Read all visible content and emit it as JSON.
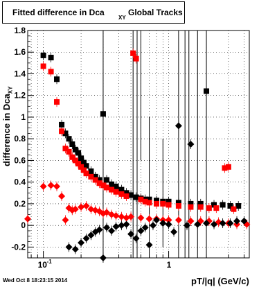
{
  "title_main": "Fitted difference in Dca",
  "title_sub": "XY",
  "title_tail": "Global Tracks",
  "footer_timestamp": "Wed Oct  8 18:23:15 2014",
  "chart_data": {
    "type": "scatter",
    "title": "Fitted difference in Dca XY Global Tracks",
    "xlabel": "pT/|q| (GeV/c)",
    "ylabel": "difference in Dca XY",
    "x_scale": "log",
    "xlim": [
      0.075,
      4.4
    ],
    "ylim": [
      -0.3,
      1.8
    ],
    "y_ticks": [
      "-0.2",
      "0",
      "0.2",
      "0.4",
      "0.6",
      "0.8",
      "1",
      "1.2",
      "1.4",
      "1.6",
      "1.8"
    ],
    "x_tick_labels": [
      "10^-1",
      "1"
    ],
    "grid": true,
    "colors": {
      "black_series": "#000000",
      "red_series": "#ff0000",
      "error_bars": "#000000"
    },
    "series": [
      {
        "marker": "square",
        "color": "#000000",
        "points": [
          [
            0.1,
            1.57
          ],
          [
            0.115,
            1.55
          ],
          [
            0.128,
            1.35
          ],
          [
            0.14,
            0.93
          ],
          [
            0.15,
            0.85
          ],
          [
            0.16,
            0.8
          ],
          [
            0.17,
            0.75
          ],
          [
            0.18,
            0.7
          ],
          [
            0.19,
            0.67
          ],
          [
            0.2,
            0.62
          ],
          [
            0.21,
            0.58
          ],
          [
            0.22,
            0.55
          ],
          [
            0.24,
            0.5
          ],
          [
            0.26,
            0.45
          ],
          [
            0.28,
            0.42
          ],
          [
            0.3,
            1.03
          ],
          [
            0.32,
            0.42
          ],
          [
            0.35,
            0.38
          ],
          [
            0.38,
            0.36
          ],
          [
            0.42,
            0.33
          ],
          [
            0.46,
            0.3
          ],
          [
            0.5,
            0.28
          ],
          [
            0.55,
            0.26
          ],
          [
            0.6,
            0.25
          ],
          [
            0.65,
            0.24
          ],
          [
            0.7,
            0.24
          ],
          [
            0.8,
            0.23
          ],
          [
            0.9,
            0.22
          ],
          [
            1.0,
            0.22
          ],
          [
            1.2,
            0.21
          ],
          [
            1.5,
            0.2
          ],
          [
            1.8,
            0.2
          ],
          [
            2.0,
            1.24
          ],
          [
            2.3,
            0.19
          ],
          [
            2.7,
            0.19
          ],
          [
            3.1,
            0.18
          ],
          [
            3.6,
            0.18
          ]
        ]
      },
      {
        "marker": "square",
        "color": "#ff0000",
        "points": [
          [
            0.1,
            1.47
          ],
          [
            0.115,
            1.42
          ],
          [
            0.128,
            1.14
          ],
          [
            0.14,
            0.87
          ],
          [
            0.15,
            0.71
          ],
          [
            0.16,
            0.68
          ],
          [
            0.17,
            0.63
          ],
          [
            0.18,
            0.6
          ],
          [
            0.19,
            0.57
          ],
          [
            0.2,
            0.54
          ],
          [
            0.21,
            0.51
          ],
          [
            0.22,
            0.48
          ],
          [
            0.24,
            0.45
          ],
          [
            0.26,
            0.42
          ],
          [
            0.28,
            0.39
          ],
          [
            0.3,
            0.37
          ],
          [
            0.32,
            0.35
          ],
          [
            0.35,
            0.33
          ],
          [
            0.38,
            0.31
          ],
          [
            0.42,
            0.29
          ],
          [
            0.46,
            0.27
          ],
          [
            0.52,
            1.59
          ],
          [
            0.55,
            1.54
          ],
          [
            0.6,
            0.24
          ],
          [
            0.65,
            0.22
          ],
          [
            0.7,
            0.21
          ],
          [
            0.8,
            0.2
          ],
          [
            0.9,
            0.2
          ],
          [
            1.0,
            0.19
          ],
          [
            1.2,
            0.18
          ],
          [
            1.5,
            0.17
          ],
          [
            1.8,
            0.17
          ],
          [
            2.1,
            0.16
          ],
          [
            2.4,
            0.16
          ],
          [
            2.8,
            0.53
          ],
          [
            3.0,
            0.54
          ],
          [
            3.3,
            0.15
          ]
        ]
      },
      {
        "marker": "diamond",
        "color": "#ff0000",
        "points": [
          [
            0.075,
            0.06
          ],
          [
            0.1,
            0.36
          ],
          [
            0.115,
            0.37
          ],
          [
            0.128,
            0.36
          ],
          [
            0.14,
            0.27
          ],
          [
            0.15,
            0.05
          ],
          [
            0.16,
            0.16
          ],
          [
            0.17,
            0.14
          ],
          [
            0.18,
            0.15
          ],
          [
            0.2,
            0.17
          ],
          [
            0.22,
            0.18
          ],
          [
            0.24,
            0.15
          ],
          [
            0.26,
            0.14
          ],
          [
            0.28,
            0.13
          ],
          [
            0.3,
            0.11
          ],
          [
            0.32,
            0.12
          ],
          [
            0.35,
            0.1
          ],
          [
            0.38,
            0.09
          ],
          [
            0.42,
            0.08
          ],
          [
            0.46,
            0.07
          ],
          [
            0.5,
            0.08
          ],
          [
            0.6,
            0.07
          ],
          [
            0.7,
            0.06
          ],
          [
            0.8,
            0.06
          ],
          [
            0.9,
            0.05
          ],
          [
            1.0,
            0.05
          ],
          [
            1.2,
            0.05
          ],
          [
            1.5,
            0.04
          ],
          [
            1.8,
            0.04
          ],
          [
            2.1,
            0.04
          ],
          [
            2.5,
            0.03
          ],
          [
            3.0,
            0.02
          ],
          [
            3.5,
            0.01
          ],
          [
            4.2,
            0.01
          ]
        ]
      },
      {
        "marker": "diamond",
        "color": "#000000",
        "points": [
          [
            0.16,
            -0.2
          ],
          [
            0.18,
            -0.22
          ],
          [
            0.2,
            -0.16
          ],
          [
            0.22,
            -0.12
          ],
          [
            0.24,
            -0.09
          ],
          [
            0.26,
            -0.06
          ],
          [
            0.28,
            -0.04
          ],
          [
            0.3,
            -0.3
          ],
          [
            0.32,
            -0.02
          ],
          [
            0.35,
            -0.05
          ],
          [
            0.38,
            -0.01
          ],
          [
            0.42,
            0.0
          ],
          [
            0.46,
            0.01
          ],
          [
            0.5,
            -0.08
          ],
          [
            0.55,
            -0.12
          ],
          [
            0.6,
            -0.05
          ],
          [
            0.65,
            -0.02
          ],
          [
            0.7,
            -0.18
          ],
          [
            0.75,
            0.0
          ],
          [
            0.8,
            0.05
          ],
          [
            0.9,
            0.02
          ],
          [
            1.0,
            0.01
          ],
          [
            1.1,
            -0.06
          ],
          [
            1.2,
            0.92
          ],
          [
            1.4,
            0.0
          ],
          [
            1.5,
            0.75
          ],
          [
            1.7,
            0.01
          ],
          [
            2.0,
            0.02
          ],
          [
            2.3,
            0.01
          ],
          [
            2.7,
            0.02
          ],
          [
            3.1,
            0.02
          ],
          [
            3.5,
            0.04
          ],
          [
            4.0,
            0.04
          ]
        ]
      }
    ],
    "error_bars": [
      {
        "x": 0.3,
        "low": -0.3,
        "high": 1.8
      },
      {
        "x": 0.52,
        "low": -0.3,
        "high": 1.8
      },
      {
        "x": 0.56,
        "low": -0.3,
        "high": 1.8
      },
      {
        "x": 0.6,
        "low": 0.6,
        "high": 1.8
      },
      {
        "x": 0.7,
        "low": -0.3,
        "high": 1.0
      },
      {
        "x": 0.9,
        "low": -0.2,
        "high": 0.8
      },
      {
        "x": 1.2,
        "low": -0.3,
        "high": 1.8
      },
      {
        "x": 1.35,
        "low": -0.3,
        "high": 1.8
      },
      {
        "x": 1.45,
        "low": -0.3,
        "high": 1.8
      },
      {
        "x": 1.7,
        "low": -0.3,
        "high": 1.8
      },
      {
        "x": 2.0,
        "low": -0.3,
        "high": 1.8
      }
    ]
  }
}
